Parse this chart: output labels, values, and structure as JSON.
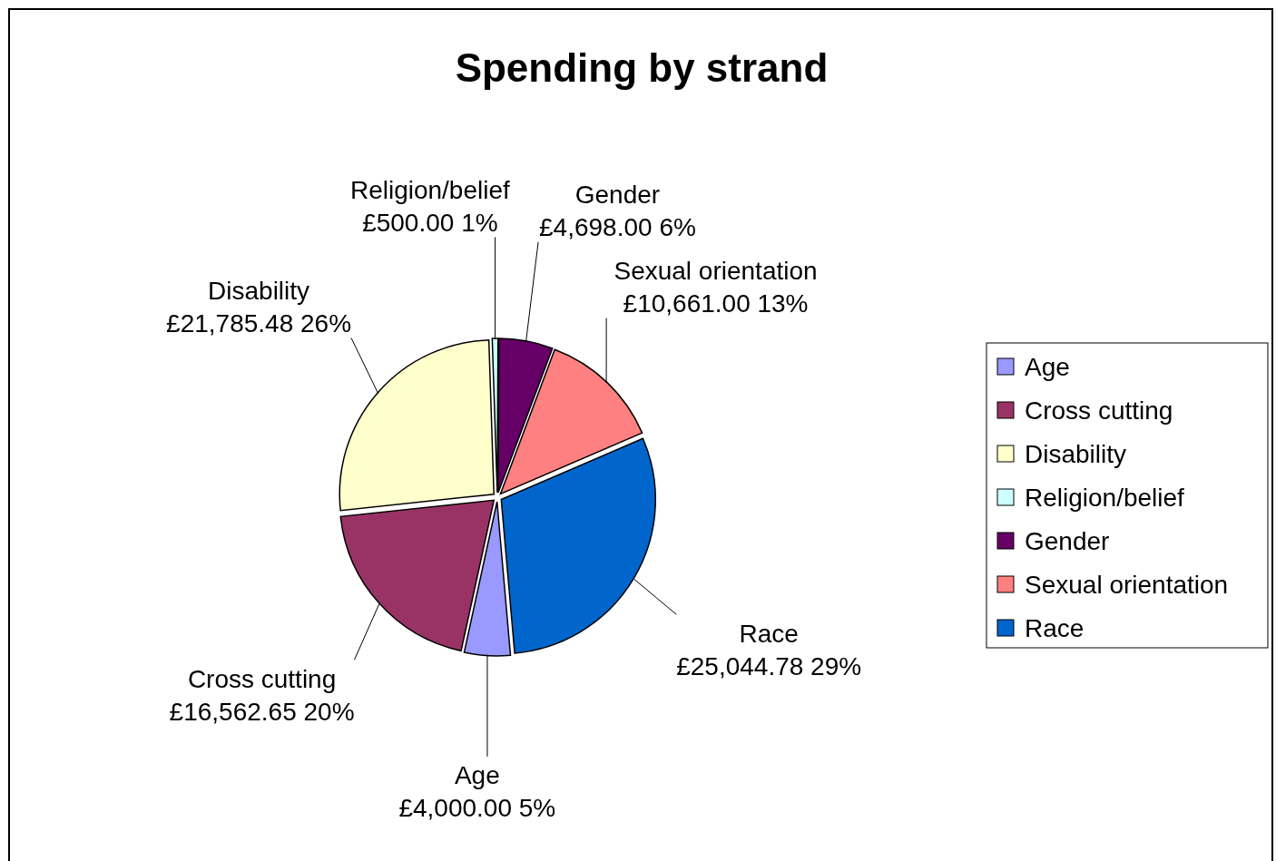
{
  "chart_data": {
    "type": "pie",
    "title": "Spending by strand",
    "categories": [
      "Age",
      "Cross cutting",
      "Disability",
      "Religion/belief",
      "Gender",
      "Sexual orientation",
      "Race"
    ],
    "values": [
      4000.0,
      16562.65,
      21785.48,
      500.0,
      4698.0,
      10661.0,
      25044.78
    ],
    "colors": [
      "#9999ff",
      "#993366",
      "#ffffcc",
      "#ccffff",
      "#660066",
      "#ff8080",
      "#0066cc"
    ],
    "value_labels": [
      "£4,000.00 5%",
      "£16,562.65 20%",
      "£21,785.48 26%",
      "£500.00 1%",
      "£4,698.00 6%",
      "£10,661.00 13%",
      "£25,044.78 29%"
    ],
    "legend": "right"
  }
}
